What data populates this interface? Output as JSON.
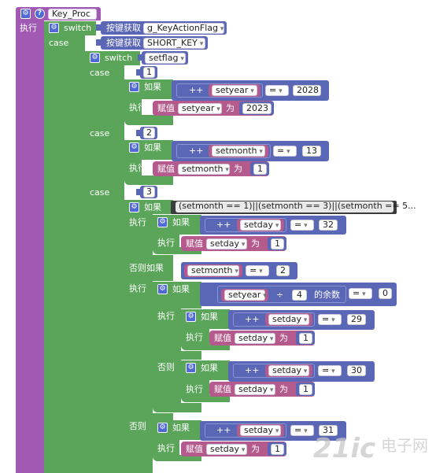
{
  "func": {
    "name": "Key_Proc",
    "exec": "执行"
  },
  "labels": {
    "switch": "switch",
    "case": "case",
    "if": "如果",
    "then": "执行",
    "elseif": "否则如果",
    "else": "否则",
    "assign": "赋值",
    "to": "为",
    "plusplus": "++",
    "eq": "=",
    "div": "÷",
    "mod": "的余数"
  },
  "switch1": {
    "getter": "按键获取",
    "var": "g_KeyActionFlag",
    "case_getter": "按键获取",
    "case_value": "SHORT_KEY"
  },
  "switch2": {
    "var": "setflag"
  },
  "case1": {
    "value": "1",
    "if_var": "setyear",
    "if_num": "2028",
    "assign_var": "setyear",
    "assign_val": "2023"
  },
  "case2": {
    "value": "2",
    "if_var": "setmonth",
    "if_num": "13",
    "assign_var": "setmonth",
    "assign_val": "1"
  },
  "case3": {
    "value": "3",
    "cond_code": "(setmonth == 1)||(setmonth == 3)||(setmonth == 5...",
    "a": {
      "if_var": "setday",
      "if_num": "32",
      "assign_var": "setday",
      "assign_val": "1"
    },
    "elseif_var": "setmonth",
    "elseif_num": "2",
    "leap": {
      "var": "setyear",
      "divisor": "4",
      "result": "0"
    },
    "b": {
      "if_var": "setday",
      "if_num": "29",
      "assign_var": "setday",
      "assign_val": "1"
    },
    "c": {
      "if_var": "setday",
      "if_num": "30",
      "assign_var": "setday",
      "assign_val": "1"
    },
    "d": {
      "if_var": "setday",
      "if_num": "31",
      "assign_var": "setday",
      "assign_val": "1"
    }
  },
  "watermark": {
    "logo": "21ic",
    "text": "电子网"
  }
}
